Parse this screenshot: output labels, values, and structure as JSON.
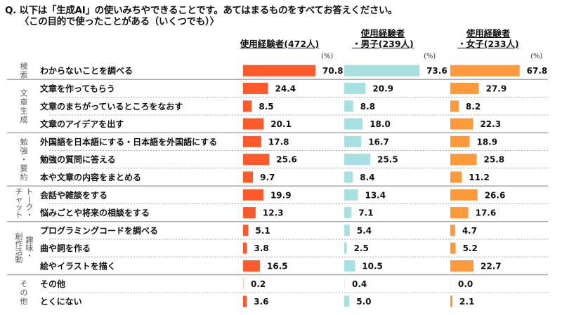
{
  "title": {
    "line1": "Q. 以下は「生成AI」の使いみちやできることです。あてはまるものをすべてお答えください。",
    "line2": "〈この目的で使ったことがある（いくつでも）〉"
  },
  "columns": [
    {
      "line1": "",
      "line2": "使用経験者(472人)",
      "unit": "(%)",
      "color": "#FF5A2C"
    },
    {
      "line1": "使用経験者",
      "line2": "・男子(239人)",
      "unit": "(%)",
      "color": "#A8E0E2"
    },
    {
      "line1": "使用経験者",
      "line2": "・女子(233人)",
      "unit": "(%)",
      "color": "#FF9A3C"
    }
  ],
  "chart_data": {
    "type": "bar",
    "orientation": "horizontal",
    "title": "Q. 以下は「生成AI」の使いみちやできることです。あてはまるものをすべてお答えください。〈この目的で使ったことがある（いくつでも）〉",
    "unit": "%",
    "groups": [
      {
        "name": "検索",
        "rows": [
          0
        ]
      },
      {
        "name": "文章生成",
        "rows": [
          1,
          2,
          3
        ]
      },
      {
        "name": "勉強・要約",
        "rows": [
          4,
          5,
          6
        ]
      },
      {
        "name": "トーク・チャット",
        "rows": [
          7,
          8
        ]
      },
      {
        "name": "趣味・創作活動",
        "rows": [
          9,
          10,
          11
        ]
      },
      {
        "name": "その他",
        "rows": [
          12,
          13
        ]
      }
    ],
    "categories": [
      "わからないことを調べる",
      "文章を作ってもらう",
      "文章のまちがっているところをなおす",
      "文章のアイデアを出す",
      "外国語を日本語にする・日本語を外国語にする",
      "勉強の質問に答える",
      "本や文章の内容をまとめる",
      "会話や雑談をする",
      "悩みごとや将来の相談をする",
      "プログラミングコードを調べる",
      "曲や詞を作る",
      "絵やイラストを描く",
      "その他",
      "とくにない"
    ],
    "series": [
      {
        "name": "使用経験者(472人)",
        "color": "#FF5A2C",
        "values": [
          70.8,
          24.4,
          8.5,
          20.1,
          17.8,
          25.6,
          9.7,
          19.9,
          12.3,
          5.1,
          3.8,
          16.5,
          0.2,
          3.6
        ]
      },
      {
        "name": "使用経験者・男子(239人)",
        "color": "#A8E0E2",
        "values": [
          73.6,
          20.9,
          8.8,
          18.0,
          16.7,
          25.5,
          8.4,
          13.4,
          7.1,
          5.4,
          2.5,
          10.5,
          0.4,
          5.0
        ]
      },
      {
        "name": "使用経験者・女子(233人)",
        "color": "#FF9A3C",
        "values": [
          67.8,
          27.9,
          8.2,
          22.3,
          18.9,
          25.8,
          11.2,
          26.6,
          17.6,
          4.7,
          5.2,
          22.7,
          0.0,
          2.1
        ]
      }
    ],
    "xlim": [
      0,
      100
    ],
    "grid": false,
    "legend": "top"
  }
}
